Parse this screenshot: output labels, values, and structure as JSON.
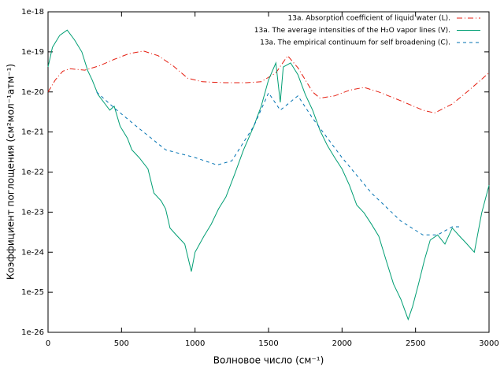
{
  "chart_data": {
    "type": "line",
    "xlabel": "Волновое число (см⁻¹)",
    "ylabel": "Коэффициент поглощения (см²мол⁻¹атм⁻¹)",
    "xlim": [
      0,
      3000
    ],
    "xticks": [
      0,
      500,
      1000,
      1500,
      2000,
      2500,
      3000
    ],
    "ylim": [
      1e-26,
      1e-18
    ],
    "ylog": true,
    "yticks": [
      {
        "value": 1e-26,
        "label": "1e-26"
      },
      {
        "value": 1e-25,
        "label": "1e-25"
      },
      {
        "value": 1e-24,
        "label": "1e-24"
      },
      {
        "value": 1e-23,
        "label": "1e-23"
      },
      {
        "value": 1e-22,
        "label": "1e-22"
      },
      {
        "value": 1e-21,
        "label": "1e-21"
      },
      {
        "value": 1e-20,
        "label": "1e-20"
      },
      {
        "value": 1e-19,
        "label": "1e-19"
      },
      {
        "value": 1e-18,
        "label": "1e-18"
      }
    ],
    "legend": "top-right",
    "series": [
      {
        "name": "13a. Absorption coefficient of liquid water (L).",
        "color": "#e51e10",
        "style": "dashdot",
        "x": [
          0,
          50,
          100,
          150,
          250,
          350,
          450,
          550,
          650,
          750,
          850,
          950,
          1050,
          1200,
          1350,
          1450,
          1550,
          1630,
          1700,
          1800,
          1850,
          1950,
          2050,
          2150,
          2250,
          2400,
          2550,
          2630,
          2750,
          2850,
          3000
        ],
        "values": [
          1e-20,
          2e-20,
          3.3e-20,
          3.8e-20,
          3.5e-20,
          4.5e-20,
          6.5e-20,
          9e-20,
          1.05e-19,
          8e-20,
          4.5e-20,
          2.2e-20,
          1.8e-20,
          1.7e-20,
          1.7e-20,
          1.8e-20,
          3e-20,
          8e-20,
          4e-20,
          1e-20,
          7e-21,
          8e-21,
          1.1e-20,
          1.3e-20,
          1e-20,
          6e-21,
          3.5e-21,
          3e-21,
          5e-21,
          1e-20,
          3e-20
        ]
      },
      {
        "name": "13a. The average intensities of the H₂O vapor lines (V).",
        "color": "#009e73",
        "style": "solid",
        "x": [
          0,
          30,
          80,
          130,
          180,
          230,
          270,
          300,
          340,
          380,
          420,
          450,
          490,
          540,
          570,
          620,
          680,
          720,
          770,
          800,
          830,
          880,
          930,
          975,
          1000,
          1060,
          1110,
          1160,
          1210,
          1270,
          1330,
          1400,
          1450,
          1500,
          1550,
          1580,
          1600,
          1650,
          1700,
          1750,
          1800,
          1850,
          1900,
          1950,
          2000,
          2050,
          2100,
          2150,
          2200,
          2250,
          2300,
          2350,
          2400,
          2450,
          2480,
          2520,
          2560,
          2600,
          2650,
          2700,
          2750,
          2800,
          2850,
          2900,
          2950,
          3000
        ],
        "values": [
          4.2e-20,
          1.3e-19,
          2.6e-19,
          3.5e-19,
          2e-19,
          1e-19,
          3.4e-20,
          2e-20,
          8.6e-21,
          5.5e-21,
          3.5e-21,
          4.4e-21,
          1.4e-21,
          7e-22,
          3.6e-22,
          2.3e-22,
          1.2e-22,
          3e-23,
          1.9e-23,
          1.2e-23,
          4e-24,
          2.5e-24,
          1.6e-24,
          3.3e-25,
          1e-24,
          2.5e-24,
          5e-24,
          1.2e-23,
          2.4e-23,
          9e-23,
          3.6e-22,
          1.4e-21,
          4.4e-21,
          2e-20,
          5.3e-20,
          5.5e-21,
          4.2e-20,
          5.3e-20,
          2.7e-20,
          8.6e-21,
          3.5e-21,
          1.1e-21,
          4.6e-22,
          2.3e-22,
          1.2e-22,
          4.7e-23,
          1.5e-23,
          9.6e-24,
          5e-24,
          2.5e-24,
          6.3e-25,
          1.6e-25,
          6.7e-26,
          2.1e-26,
          4.4e-26,
          1.6e-25,
          6.3e-25,
          2e-24,
          2.7e-24,
          1.6e-24,
          4e-24,
          2.5e-24,
          1.6e-24,
          1e-24,
          9.6e-24,
          4.7e-23
        ]
      },
      {
        "name": "13a. The empirical continuum for self broadening (C).",
        "color": "#0072b2",
        "style": "dashed",
        "x": [
          330,
          450,
          600,
          800,
          1000,
          1150,
          1250,
          1400,
          1500,
          1580,
          1700,
          1800,
          2000,
          2200,
          2400,
          2550,
          2650,
          2750,
          2800
        ],
        "values": [
          1e-20,
          4e-21,
          1.4e-21,
          3.6e-22,
          2.3e-22,
          1.5e-22,
          1.9e-22,
          1.4e-21,
          9.5e-21,
          3.5e-21,
          8e-21,
          2.2e-21,
          2.3e-22,
          3e-23,
          6e-24,
          2.7e-24,
          2.7e-24,
          4.3e-24,
          4.3e-24
        ]
      }
    ]
  }
}
